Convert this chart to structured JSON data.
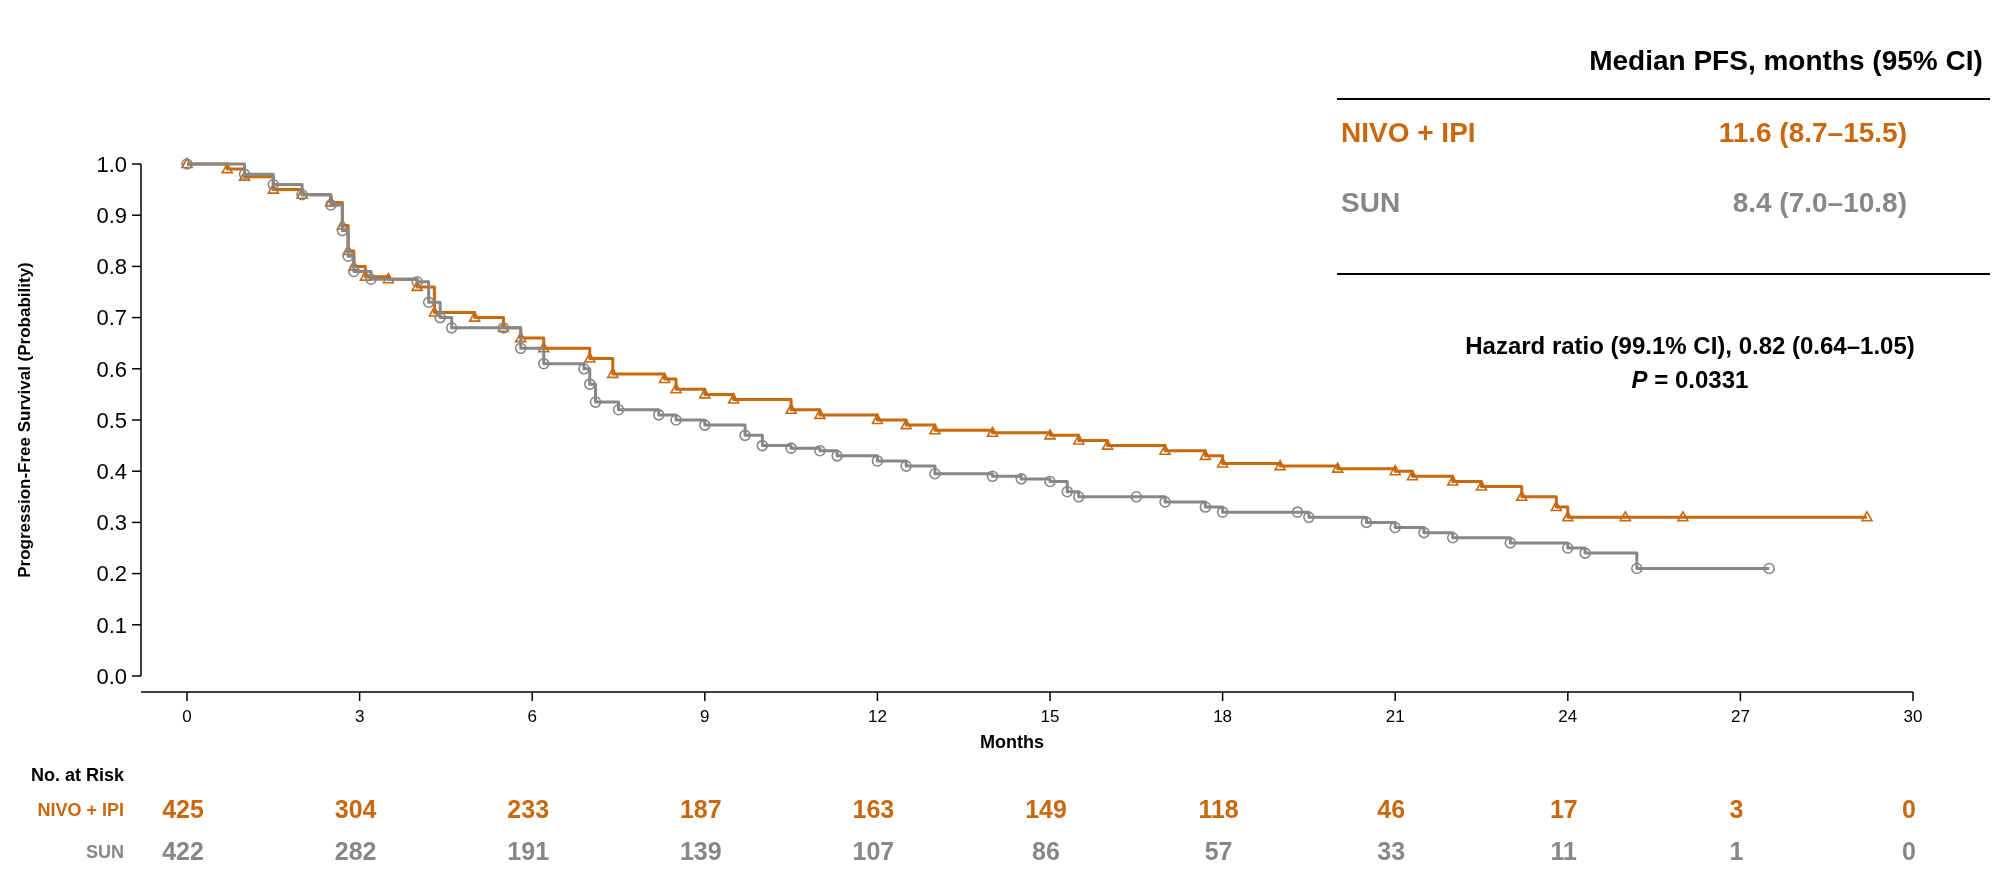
{
  "chart_data": {
    "type": "step",
    "xlabel": "Months",
    "ylabel": "Progression-Free Survival (Probability)",
    "xlim": [
      -0.8,
      30
    ],
    "xticks": [
      0,
      3,
      6,
      9,
      12,
      15,
      18,
      21,
      24,
      27,
      30
    ],
    "ylim": [
      0,
      1
    ],
    "yticks": [
      {
        "value": 0,
        "label": "0.0"
      },
      {
        "value": 0.1,
        "label": "0.1"
      },
      {
        "value": 0.2,
        "label": "0.2"
      },
      {
        "value": 0.3,
        "label": "0.3"
      },
      {
        "value": 0.4,
        "label": "0.4"
      },
      {
        "value": 0.5,
        "label": "0.5"
      },
      {
        "value": 0.6,
        "label": "0.6"
      },
      {
        "value": 0.7,
        "label": "0.7"
      },
      {
        "value": 0.8,
        "label": "0.8"
      },
      {
        "value": 0.9,
        "label": "0.9"
      },
      {
        "value": 1,
        "label": "1.0"
      }
    ],
    "grid": false,
    "legend": false,
    "line_style": "solid",
    "series": [
      {
        "name": "NIVO + IPI",
        "color": "#c8690f",
        "marker": "triangle",
        "x": [
          0,
          0.7,
          1,
          1.5,
          2,
          2.5,
          2.7,
          2.8,
          2.9,
          3.1,
          3.5,
          4,
          4.3,
          5,
          5.5,
          5.8,
          6.2,
          7,
          7.4,
          8.3,
          8.5,
          9,
          9.5,
          10.5,
          11,
          12,
          12.5,
          13,
          14,
          15,
          15.5,
          16,
          17,
          17.7,
          18,
          19,
          20,
          21,
          21.3,
          22,
          22.5,
          23.2,
          23.8,
          24,
          25,
          26,
          29.2
        ],
        "values": [
          1,
          0.99,
          0.975,
          0.95,
          0.94,
          0.925,
          0.88,
          0.83,
          0.8,
          0.78,
          0.775,
          0.76,
          0.71,
          0.7,
          0.68,
          0.66,
          0.64,
          0.62,
          0.59,
          0.58,
          0.56,
          0.55,
          0.54,
          0.52,
          0.51,
          0.5,
          0.49,
          0.48,
          0.475,
          0.47,
          0.46,
          0.45,
          0.44,
          0.43,
          0.415,
          0.41,
          0.405,
          0.4,
          0.39,
          0.38,
          0.37,
          0.35,
          0.33,
          0.31,
          0.31,
          0.31,
          0.31
        ]
      },
      {
        "name": "SUN",
        "color": "#878787",
        "marker": "circle",
        "x": [
          0,
          1,
          1.5,
          2,
          2.5,
          2.7,
          2.8,
          2.9,
          3.2,
          4,
          4.2,
          4.4,
          4.6,
          5.5,
          5.8,
          6.2,
          6.9,
          7,
          7.1,
          7.5,
          8.2,
          8.5,
          9,
          9.7,
          10,
          10.5,
          11,
          11.3,
          12,
          12.5,
          13,
          14,
          14.5,
          15,
          15.3,
          15.5,
          16.5,
          17,
          17.7,
          18,
          19.3,
          19.5,
          20.5,
          21,
          21.5,
          22,
          23,
          24,
          24.3,
          25.2,
          27.5
        ],
        "values": [
          1,
          0.98,
          0.96,
          0.94,
          0.92,
          0.87,
          0.82,
          0.79,
          0.775,
          0.77,
          0.73,
          0.7,
          0.68,
          0.68,
          0.64,
          0.61,
          0.6,
          0.57,
          0.535,
          0.52,
          0.51,
          0.5,
          0.49,
          0.47,
          0.45,
          0.445,
          0.44,
          0.43,
          0.42,
          0.41,
          0.395,
          0.39,
          0.385,
          0.38,
          0.36,
          0.35,
          0.35,
          0.34,
          0.33,
          0.32,
          0.32,
          0.31,
          0.3,
          0.29,
          0.28,
          0.27,
          0.26,
          0.25,
          0.24,
          0.21,
          0.21
        ]
      }
    ],
    "annotations": [
      "Median PFS, months (95% CI)",
      "11.6 (8.7–15.5)",
      "8.4 (7.0–10.8)",
      "Hazard ratio (99.1% CI), 0.82 (0.64–1.05)",
      "P = 0.0331",
      "No. at Risk",
      "425",
      "304",
      "233",
      "187",
      "163",
      "149",
      "118",
      "46",
      "17",
      "3",
      "0",
      "422",
      "282",
      "191",
      "139",
      "107",
      "86",
      "57",
      "33",
      "11",
      "1",
      "0"
    ]
  }
}
